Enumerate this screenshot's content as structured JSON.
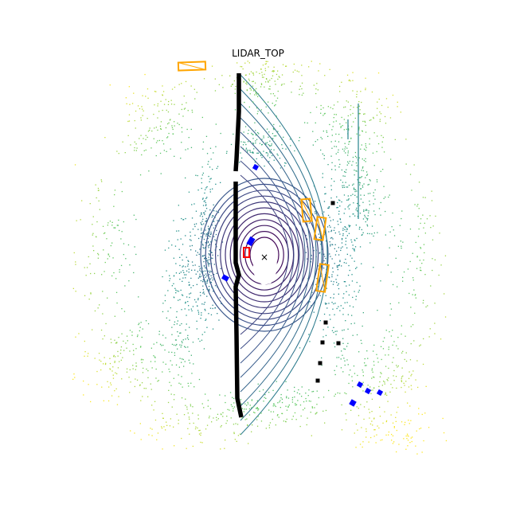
{
  "title": "LIDAR_TOP",
  "colormap": [
    "#440154",
    "#3b528b",
    "#21918c",
    "#5ec962",
    "#fde725"
  ],
  "colors": {
    "background": "#ffffff",
    "car_box": "#ffa500",
    "pedestrian_box": "#0000ff",
    "barrier_box": "#000000",
    "traffic_cone_box": "#ff0000",
    "ego_marker": "#000000"
  },
  "ego_marker_glyph": "×"
}
